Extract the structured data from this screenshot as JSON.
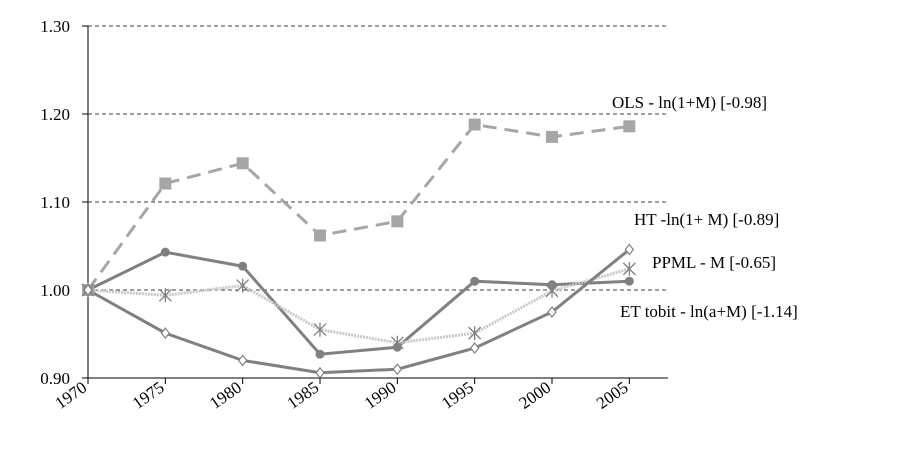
{
  "chart_data": {
    "type": "line",
    "x": [
      1970,
      1975,
      1980,
      1985,
      1990,
      1995,
      2000,
      2005
    ],
    "xlim": [
      1970,
      2007.5
    ],
    "xticks": [
      1970,
      1975,
      1980,
      1985,
      1990,
      1995,
      2000,
      2005
    ],
    "ylim": [
      0.9,
      1.3
    ],
    "yticks": [
      {
        "value": 0.9,
        "label": "0.90"
      },
      {
        "value": 1.0,
        "label": "1.00"
      },
      {
        "value": 1.1,
        "label": "1.10"
      },
      {
        "value": 1.2,
        "label": "1.20"
      },
      {
        "value": 1.3,
        "label": "1.30"
      }
    ],
    "grid": true,
    "series": [
      {
        "name": "OLS - ln(1+M) [-0.98]",
        "color": "#a6a6a6",
        "values": [
          1.0,
          1.121,
          1.144,
          1.062,
          1.078,
          1.188,
          1.174,
          1.186
        ]
      },
      {
        "name": "HT -ln(1+ M) [-0.89]",
        "color": "#808080",
        "values": [
          1.0,
          1.043,
          1.027,
          0.927,
          0.935,
          1.01,
          1.006,
          1.01
        ]
      },
      {
        "name": "PPML - M [-0.65]",
        "color": "#c8c8c8",
        "values": [
          1.0,
          0.994,
          1.005,
          0.955,
          0.94,
          0.951,
          0.999,
          1.024
        ]
      },
      {
        "name": "ET tobit - ln(a+M) [-1.14]",
        "color": "#808080",
        "values": [
          1.0,
          0.951,
          0.92,
          0.906,
          0.91,
          0.934,
          0.975,
          1.046
        ]
      }
    ]
  }
}
